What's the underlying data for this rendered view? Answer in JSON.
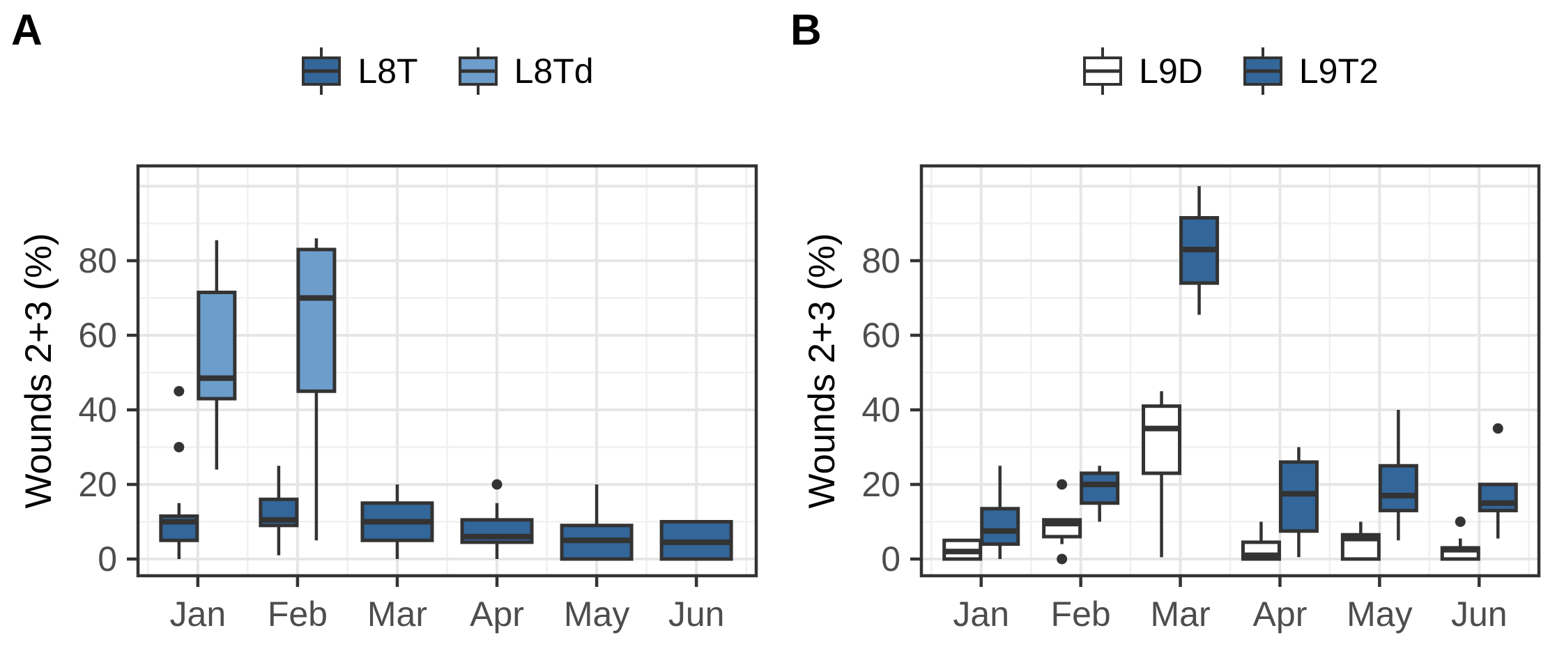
{
  "figure": {
    "panel_letters": {
      "a": "A",
      "b": "B"
    },
    "y_axis_title": "Wounds 2+3 (%)",
    "colors": {
      "dark_blue": "#336699",
      "light_blue": "#6D9ECB",
      "white_box": "#FFFFFF",
      "box_border": "#333333",
      "grid_major": "#E6E6E6",
      "grid_minor": "#F0F0F0",
      "axis_text": "#4D4D4D",
      "panel_border": "#333333"
    }
  },
  "chart_data": [
    {
      "type": "boxplot",
      "panel": "A",
      "ylabel": "Wounds 2+3 (%)",
      "xlabel": "",
      "categories": [
        "Jan",
        "Feb",
        "Mar",
        "Apr",
        "May",
        "Jun"
      ],
      "y_ticks": [
        0,
        20,
        40,
        60,
        80
      ],
      "ylim": [
        -4.5,
        105.5
      ],
      "grid": true,
      "legend_position": "top",
      "series": [
        {
          "name": "L8T",
          "fill": "#336699",
          "boxes": [
            {
              "category": "Jan",
              "low": 0,
              "q1": 5,
              "median": 10,
              "q3": 11.5,
              "high": 15,
              "outliers": [
                30,
                45
              ]
            },
            {
              "category": "Feb",
              "low": 1,
              "q1": 9,
              "median": 10.5,
              "q3": 16,
              "high": 25,
              "outliers": []
            },
            {
              "category": "Mar",
              "low": 0,
              "q1": 5,
              "median": 10,
              "q3": 15,
              "high": 20,
              "outliers": []
            },
            {
              "category": "Apr",
              "low": 0,
              "q1": 4.5,
              "median": 6,
              "q3": 10.5,
              "high": 15,
              "outliers": [
                20
              ]
            },
            {
              "category": "May",
              "low": 0,
              "q1": 0,
              "median": 5,
              "q3": 9,
              "high": 20,
              "outliers": []
            },
            {
              "category": "Jun",
              "low": 0,
              "q1": 0,
              "median": 4.5,
              "q3": 10,
              "high": 10,
              "outliers": []
            }
          ]
        },
        {
          "name": "L8Td",
          "fill": "#6D9ECB",
          "boxes": [
            {
              "category": "Jan",
              "low": 24,
              "q1": 43,
              "median": 48.5,
              "q3": 71.5,
              "high": 85.5,
              "outliers": []
            },
            {
              "category": "Feb",
              "low": 5,
              "q1": 45,
              "median": 70,
              "q3": 83,
              "high": 86,
              "outliers": []
            }
          ]
        }
      ]
    },
    {
      "type": "boxplot",
      "panel": "B",
      "ylabel": "Wounds 2+3 (%)",
      "xlabel": "",
      "categories": [
        "Jan",
        "Feb",
        "Mar",
        "Apr",
        "May",
        "Jun"
      ],
      "y_ticks": [
        0,
        20,
        40,
        60,
        80
      ],
      "ylim": [
        -4.5,
        105.5
      ],
      "grid": true,
      "legend_position": "top",
      "series": [
        {
          "name": "L9D",
          "fill": "#FFFFFF",
          "boxes": [
            {
              "category": "Jan",
              "low": 0,
              "q1": 0,
              "median": 2,
              "q3": 5,
              "high": 5,
              "outliers": []
            },
            {
              "category": "Feb",
              "low": 4,
              "q1": 6,
              "median": 9.5,
              "q3": 10.5,
              "high": 10.5,
              "outliers": [
                20,
                0
              ]
            },
            {
              "category": "Mar",
              "low": 0.5,
              "q1": 23,
              "median": 35,
              "q3": 41,
              "high": 45,
              "outliers": []
            },
            {
              "category": "Apr",
              "low": 0,
              "q1": 0,
              "median": 1,
              "q3": 4.5,
              "high": 10,
              "outliers": []
            },
            {
              "category": "May",
              "low": 0,
              "q1": 0,
              "median": 5.5,
              "q3": 6.5,
              "high": 10,
              "outliers": []
            },
            {
              "category": "Jun",
              "low": 0,
              "q1": 0,
              "median": 2.5,
              "q3": 3,
              "high": 5.5,
              "outliers": [
                10
              ]
            }
          ]
        },
        {
          "name": "L9T2",
          "fill": "#336699",
          "boxes": [
            {
              "category": "Jan",
              "low": 0,
              "q1": 4,
              "median": 7.5,
              "q3": 13.5,
              "high": 25,
              "outliers": []
            },
            {
              "category": "Feb",
              "low": 10,
              "q1": 15,
              "median": 20,
              "q3": 23,
              "high": 25,
              "outliers": []
            },
            {
              "category": "Mar",
              "low": 65.5,
              "q1": 74,
              "median": 83,
              "q3": 91.5,
              "high": 100,
              "outliers": []
            },
            {
              "category": "Apr",
              "low": 0.5,
              "q1": 7.5,
              "median": 17.5,
              "q3": 26,
              "high": 30,
              "outliers": []
            },
            {
              "category": "May",
              "low": 5,
              "q1": 13,
              "median": 17,
              "q3": 25,
              "high": 40,
              "outliers": []
            },
            {
              "category": "Jun",
              "low": 5.5,
              "q1": 13,
              "median": 15,
              "q3": 20,
              "high": 20,
              "outliers": [
                35
              ]
            }
          ]
        }
      ]
    }
  ]
}
